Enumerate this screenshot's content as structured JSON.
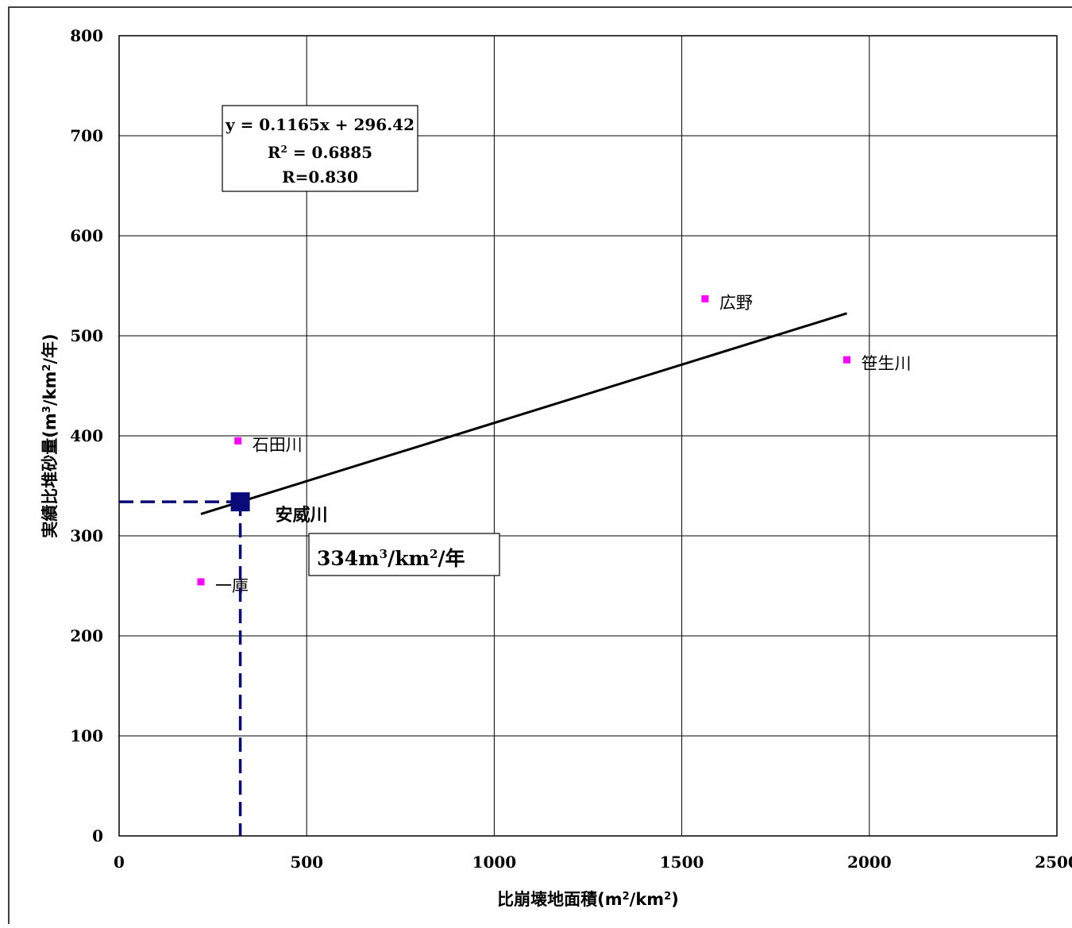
{
  "chart_data": {
    "type": "scatter",
    "xlabel_parts": [
      "比崩壊地面積(m",
      "2",
      "/km",
      "2",
      ")"
    ],
    "ylabel_parts": [
      "実績比堆砂量(m",
      "3",
      "/km",
      "2",
      "/年)"
    ],
    "xlim": [
      0,
      2500
    ],
    "ylim": [
      0,
      800
    ],
    "x_ticks": [
      0,
      500,
      1000,
      1500,
      2000,
      2500
    ],
    "y_ticks": [
      0,
      100,
      200,
      300,
      400,
      500,
      600,
      700,
      800
    ],
    "x_tick_labels": [
      "0",
      "500",
      "1000",
      "1500",
      "2000",
      "2500"
    ],
    "y_tick_labels": [
      "0",
      "100",
      "200",
      "300",
      "400",
      "500",
      "600",
      "700",
      "800"
    ],
    "grid": true,
    "points": [
      {
        "label": "石田川",
        "x": 317,
        "y": 395
      },
      {
        "label": "一庫",
        "x": 218,
        "y": 254
      },
      {
        "label": "広野",
        "x": 1562,
        "y": 537
      },
      {
        "label": "笹生川",
        "x": 1940,
        "y": 476
      }
    ],
    "point_color": "#ff00ff",
    "trendline": {
      "slope": 0.1165,
      "intercept": 296.42,
      "x_start": 218,
      "x_end": 1940,
      "color": "#000000"
    },
    "equation_lines": [
      {
        "parts": [
          "y = 0.1165x + 296.42"
        ]
      },
      {
        "parts": [
          "R",
          "2",
          " = 0.6885"
        ]
      },
      {
        "parts": [
          "R=0.830"
        ]
      }
    ],
    "highlight": {
      "label": "安威川",
      "x": 323,
      "y": 334,
      "color": "#0a0a78",
      "value_parts": [
        "334m",
        "3",
        "/km",
        "2",
        "/年"
      ]
    }
  }
}
